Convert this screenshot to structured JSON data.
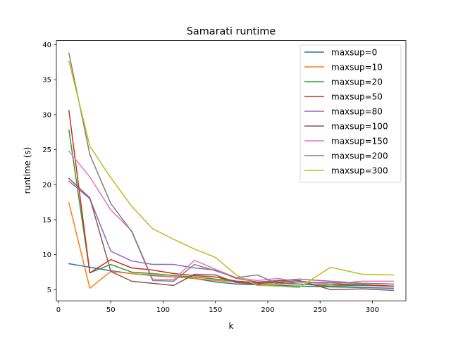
{
  "chart_data": {
    "type": "line",
    "title": "Samarati runtime",
    "xlabel": "k",
    "ylabel": "runtime (s)",
    "xlim": [
      -2,
      332
    ],
    "ylim": [
      3.4,
      40.6
    ],
    "xticks": [
      0,
      50,
      100,
      150,
      200,
      250,
      300
    ],
    "yticks": [
      5,
      10,
      15,
      20,
      25,
      30,
      35,
      40
    ],
    "grid": false,
    "legend_position": "top-right",
    "x": [
      10,
      30,
      50,
      70,
      90,
      110,
      130,
      150,
      170,
      190,
      210,
      230,
      260,
      290,
      320
    ],
    "series": [
      {
        "name": "maxsup=0",
        "color": "#1f77b4",
        "values": [
          8.7,
          8.2,
          7.7,
          7.3,
          7.0,
          6.8,
          6.6,
          6.1,
          5.8,
          5.7,
          5.6,
          5.5,
          5.4,
          5.3,
          5.2
        ]
      },
      {
        "name": "maxsup=10",
        "color": "#ff7f0e",
        "values": [
          17.4,
          5.2,
          7.6,
          7.3,
          7.1,
          6.8,
          6.6,
          6.3,
          6.1,
          5.9,
          5.8,
          5.8,
          5.7,
          5.6,
          5.5
        ]
      },
      {
        "name": "maxsup=20",
        "color": "#2ca02c",
        "values": [
          27.8,
          7.4,
          8.6,
          7.5,
          7.3,
          7.0,
          6.8,
          6.5,
          6.2,
          6.0,
          6.0,
          5.8,
          5.5,
          5.6,
          5.5
        ]
      },
      {
        "name": "maxsup=50",
        "color": "#d62728",
        "values": [
          30.6,
          7.4,
          9.3,
          8.1,
          7.8,
          7.3,
          7.0,
          6.8,
          6.2,
          6.0,
          6.1,
          6.2,
          5.8,
          5.7,
          5.5
        ]
      },
      {
        "name": "maxsup=80",
        "color": "#9467bd",
        "values": [
          20.5,
          18.0,
          10.5,
          9.1,
          8.6,
          8.6,
          8.1,
          7.8,
          6.6,
          6.1,
          6.3,
          6.5,
          6.2,
          5.9,
          5.8
        ]
      },
      {
        "name": "maxsup=100",
        "color": "#8c564b",
        "values": [
          20.9,
          18.1,
          7.6,
          6.2,
          5.9,
          5.6,
          7.2,
          7.1,
          6.0,
          5.8,
          6.3,
          6.3,
          5.0,
          5.1,
          4.9
        ]
      },
      {
        "name": "maxsup=150",
        "color": "#e377c2",
        "values": [
          24.8,
          21.1,
          16.4,
          13.4,
          6.5,
          6.4,
          9.2,
          7.9,
          6.7,
          6.3,
          6.6,
          6.1,
          5.8,
          6.2,
          6.2
        ]
      },
      {
        "name": "maxsup=200",
        "color": "#7f7f7f",
        "values": [
          38.8,
          24.3,
          17.3,
          13.3,
          6.3,
          6.2,
          8.6,
          7.7,
          6.7,
          7.1,
          5.8,
          6.1,
          6.0,
          5.9,
          5.8
        ]
      },
      {
        "name": "maxsup=300",
        "color": "#bcbd22",
        "values": [
          37.7,
          25.5,
          21.0,
          16.9,
          13.7,
          12.2,
          10.8,
          9.6,
          7.1,
          5.6,
          5.5,
          5.3,
          8.2,
          7.2,
          7.1
        ]
      }
    ]
  }
}
